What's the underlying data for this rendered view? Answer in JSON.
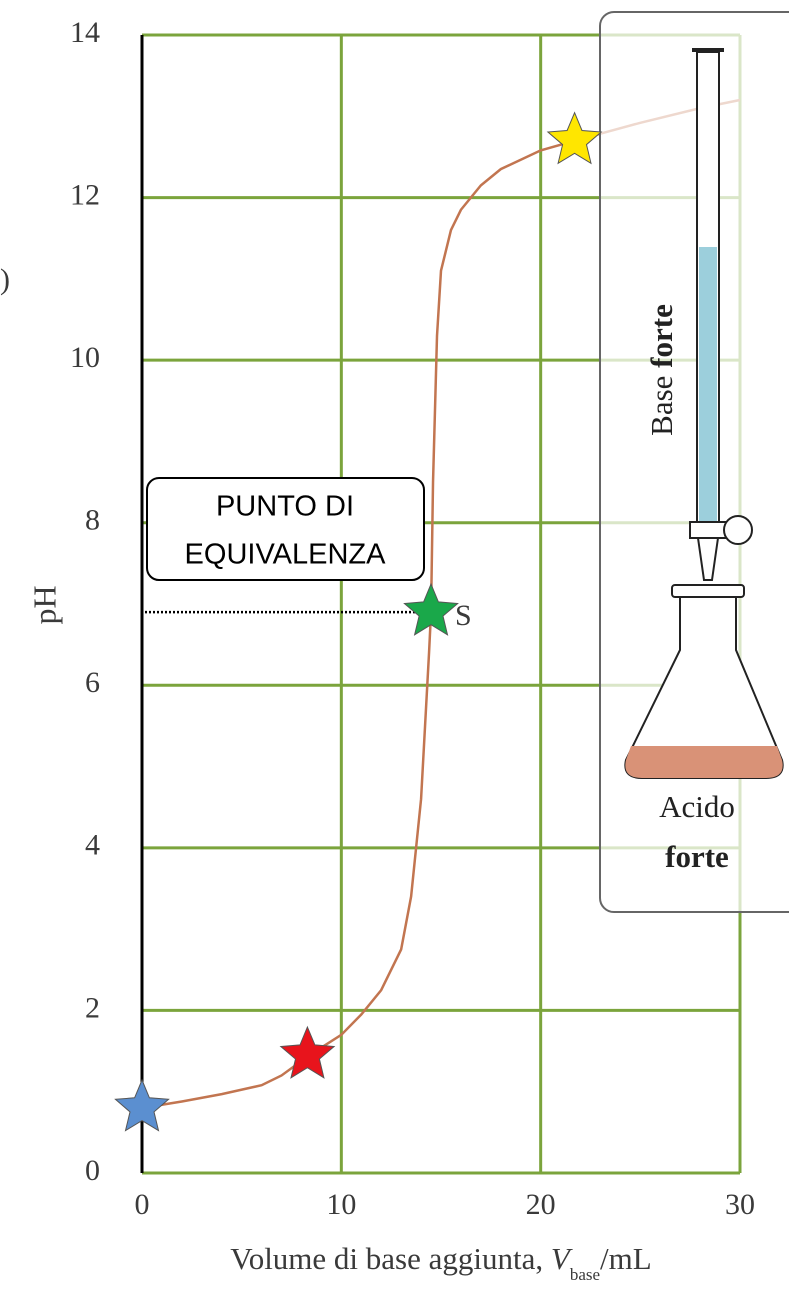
{
  "chart_data": {
    "type": "line",
    "x": [
      0,
      2,
      4,
      6,
      7,
      8.4,
      10,
      11,
      12,
      13,
      13.5,
      14,
      14.2,
      14.4,
      14.5,
      14.6,
      14.8,
      15,
      15.5,
      16,
      17,
      18,
      20,
      22,
      25,
      28,
      30
    ],
    "series": [
      {
        "color": "#c27550",
        "values": [
          0.8,
          0.88,
          0.97,
          1.08,
          1.2,
          1.45,
          1.7,
          1.95,
          2.25,
          2.75,
          3.4,
          4.6,
          5.5,
          6.4,
          6.9,
          8.5,
          10.3,
          11.1,
          11.6,
          11.85,
          12.15,
          12.35,
          12.58,
          12.72,
          12.92,
          13.1,
          13.2
        ]
      }
    ],
    "markers": {
      "x": [
        0,
        8.3,
        14.5,
        21.7
      ],
      "values": [
        0.8,
        1.45,
        6.9,
        12.7
      ],
      "colors": [
        "#5b8fd0",
        "#e8141c",
        "#1aa84a",
        "#ffe600"
      ]
    },
    "xlim": [
      0,
      30
    ],
    "xticks": [
      0,
      10,
      20,
      30
    ],
    "ylim": [
      0,
      14
    ],
    "yticks": [
      0,
      2,
      4,
      6,
      8,
      10,
      12,
      14
    ],
    "grid": true,
    "grid_color": "#7ba43c",
    "ylabel": "pH",
    "xlabel": {
      "text": "Volume di base aggiunta, ",
      "symbol": "V",
      "subscript": "base",
      "unit": "/mL"
    },
    "annotation": [
      "PUNTO DI",
      "EQUIVALENZA"
    ],
    "point_label": "S",
    "fragment": ")",
    "inset": {
      "burette": [
        "Base ",
        "forte"
      ],
      "flask": [
        "Acido",
        "forte"
      ]
    }
  }
}
